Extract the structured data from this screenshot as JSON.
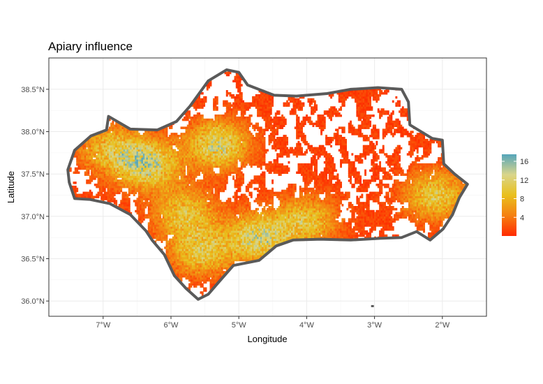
{
  "chart_data": {
    "type": "heatmap",
    "title": "Apiary influence",
    "xlabel": "Longitude",
    "ylabel": "Latitude",
    "x_range": [
      -7.8,
      -1.35
    ],
    "y_range": [
      35.82,
      38.87
    ],
    "x_ticks": [
      -7,
      -6,
      -5,
      -4,
      -3,
      -2
    ],
    "x_tick_labels": [
      "7°W",
      "6°W",
      "5°W",
      "4°W",
      "3°W",
      "2°W"
    ],
    "y_ticks": [
      36.0,
      36.5,
      37.0,
      37.5,
      38.0,
      38.5
    ],
    "y_tick_labels": [
      "36.0°N",
      "36.5°N",
      "37.0°N",
      "37.5°N",
      "38.0°N",
      "38.5°N"
    ],
    "grid": true,
    "legend": {
      "placement": "right",
      "type": "colorbar",
      "range": [
        0,
        17.5
      ],
      "ticks": [
        4,
        8,
        12,
        16
      ],
      "tick_labels": [
        "4",
        "8",
        "12",
        "16"
      ],
      "colors": [
        "#FF2A00",
        "#F57F10",
        "#E9C01C",
        "#D9D58A",
        "#55A5BA"
      ]
    },
    "region_outline": [
      [
        -7.52,
        37.55
      ],
      [
        -7.42,
        37.78
      ],
      [
        -7.18,
        37.95
      ],
      [
        -6.95,
        38.02
      ],
      [
        -6.92,
        38.18
      ],
      [
        -6.6,
        38.03
      ],
      [
        -6.2,
        38.02
      ],
      [
        -5.92,
        38.12
      ],
      [
        -5.72,
        38.3
      ],
      [
        -5.45,
        38.6
      ],
      [
        -5.18,
        38.73
      ],
      [
        -5.0,
        38.7
      ],
      [
        -4.87,
        38.55
      ],
      [
        -4.48,
        38.43
      ],
      [
        -4.15,
        38.42
      ],
      [
        -3.7,
        38.45
      ],
      [
        -3.35,
        38.5
      ],
      [
        -2.95,
        38.52
      ],
      [
        -2.6,
        38.5
      ],
      [
        -2.5,
        38.35
      ],
      [
        -2.48,
        38.08
      ],
      [
        -2.15,
        37.92
      ],
      [
        -2.0,
        37.9
      ],
      [
        -1.98,
        37.62
      ],
      [
        -1.82,
        37.5
      ],
      [
        -1.63,
        37.38
      ],
      [
        -1.75,
        37.22
      ],
      [
        -1.85,
        37.02
      ],
      [
        -1.99,
        36.85
      ],
      [
        -2.18,
        36.72
      ],
      [
        -2.38,
        36.82
      ],
      [
        -2.6,
        36.75
      ],
      [
        -2.92,
        36.74
      ],
      [
        -3.35,
        36.72
      ],
      [
        -3.8,
        36.73
      ],
      [
        -4.2,
        36.72
      ],
      [
        -4.45,
        36.65
      ],
      [
        -4.7,
        36.48
      ],
      [
        -5.08,
        36.42
      ],
      [
        -5.3,
        36.22
      ],
      [
        -5.45,
        36.08
      ],
      [
        -5.6,
        36.02
      ],
      [
        -5.78,
        36.15
      ],
      [
        -5.95,
        36.3
      ],
      [
        -6.1,
        36.55
      ],
      [
        -6.28,
        36.72
      ],
      [
        -6.37,
        36.83
      ],
      [
        -6.6,
        37.02
      ],
      [
        -6.9,
        37.15
      ],
      [
        -7.2,
        37.2
      ],
      [
        -7.42,
        37.21
      ],
      [
        -7.5,
        37.4
      ],
      [
        -7.52,
        37.55
      ]
    ],
    "islet": [
      -3.03,
      35.94
    ],
    "hotspots": [
      {
        "lon": -6.35,
        "lat": 37.62,
        "value": 13
      },
      {
        "lon": -5.3,
        "lat": 37.85,
        "value": 12
      },
      {
        "lon": -4.7,
        "lat": 36.75,
        "value": 12
      },
      {
        "lon": -5.55,
        "lat": 36.6,
        "value": 10
      },
      {
        "lon": -2.1,
        "lat": 37.25,
        "value": 10
      },
      {
        "lon": -4.0,
        "lat": 36.95,
        "value": 9
      },
      {
        "lon": -5.8,
        "lat": 37.05,
        "value": 9
      },
      {
        "lon": -6.9,
        "lat": 37.8,
        "value": 8
      }
    ]
  }
}
